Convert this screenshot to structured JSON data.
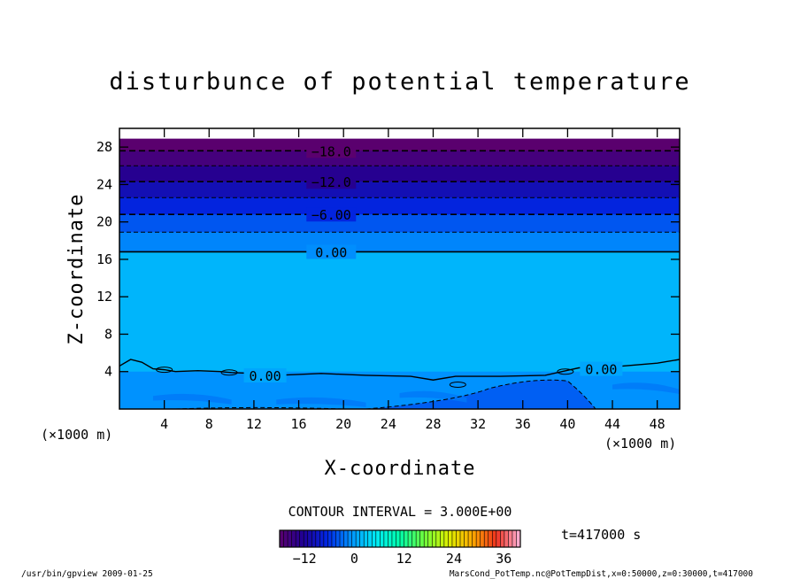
{
  "chart_data": {
    "type": "contour",
    "title": "disturbunce of potential temperature",
    "xlabel": "X-coordinate",
    "ylabel": "Z-coordinate",
    "x_unit": "(×1000 m)",
    "y_unit": "(×1000 m)",
    "xlim": [
      0,
      50
    ],
    "ylim": [
      0,
      30
    ],
    "x_ticks": [
      "4",
      "8",
      "12",
      "16",
      "20",
      "24",
      "28",
      "32",
      "36",
      "40",
      "44",
      "48"
    ],
    "y_ticks": [
      "4",
      "8",
      "12",
      "16",
      "20",
      "24",
      "28"
    ],
    "contour_interval": "CONTOUR INTERVAL = 3.000E+00",
    "time_label": "t=417000 s",
    "colorbar": {
      "min": -18,
      "max": 40,
      "tick_labels": [
        "−12",
        "0",
        "12",
        "24",
        "36"
      ],
      "tick_values": [
        -12,
        0,
        12,
        24,
        36
      ]
    },
    "contours": [
      {
        "level": -18,
        "label": "−18.0",
        "z": 27.6,
        "style": "dashed"
      },
      {
        "level": -15,
        "label": "",
        "z": 26.0,
        "style": "dashed"
      },
      {
        "level": -12,
        "label": "−12.0",
        "z": 24.3,
        "style": "dashed"
      },
      {
        "level": -9,
        "label": "",
        "z": 22.6,
        "style": "dashed"
      },
      {
        "level": -6,
        "label": "−6.00",
        "z": 20.8,
        "style": "dashed"
      },
      {
        "level": -3,
        "label": "",
        "z": 18.9,
        "style": "dashed"
      },
      {
        "level": 0,
        "label": "0.00",
        "z": 16.8,
        "style": "solid"
      },
      {
        "level": 0,
        "label": "0.00",
        "z": 3.6,
        "style": "solid"
      },
      {
        "level": 0,
        "label": "0.00",
        "z": 4.3,
        "style": "solid"
      }
    ],
    "field_bands": [
      {
        "z_from": 28.9,
        "z_to": 30.0,
        "value": -21
      },
      {
        "z_from": 27.6,
        "z_to": 28.9,
        "value": -19
      },
      {
        "z_from": 26.0,
        "z_to": 27.6,
        "value": -16
      },
      {
        "z_from": 24.3,
        "z_to": 26.0,
        "value": -13
      },
      {
        "z_from": 22.6,
        "z_to": 24.3,
        "value": -10
      },
      {
        "z_from": 20.8,
        "z_to": 22.6,
        "value": -7
      },
      {
        "z_from": 18.9,
        "z_to": 20.8,
        "value": -4
      },
      {
        "z_from": 16.8,
        "z_to": 18.9,
        "value": -1.5
      },
      {
        "z_from": 4.0,
        "z_to": 16.8,
        "value": 1.5
      },
      {
        "z_from": 0.0,
        "z_to": 4.0,
        "value": -0.8
      }
    ]
  },
  "footer": {
    "left": "/usr/bin/gpview  2009-01-25",
    "right": "MarsCond_PotTemp.nc@PotTempDist,x=0:50000,z=0:30000,t=417000"
  }
}
